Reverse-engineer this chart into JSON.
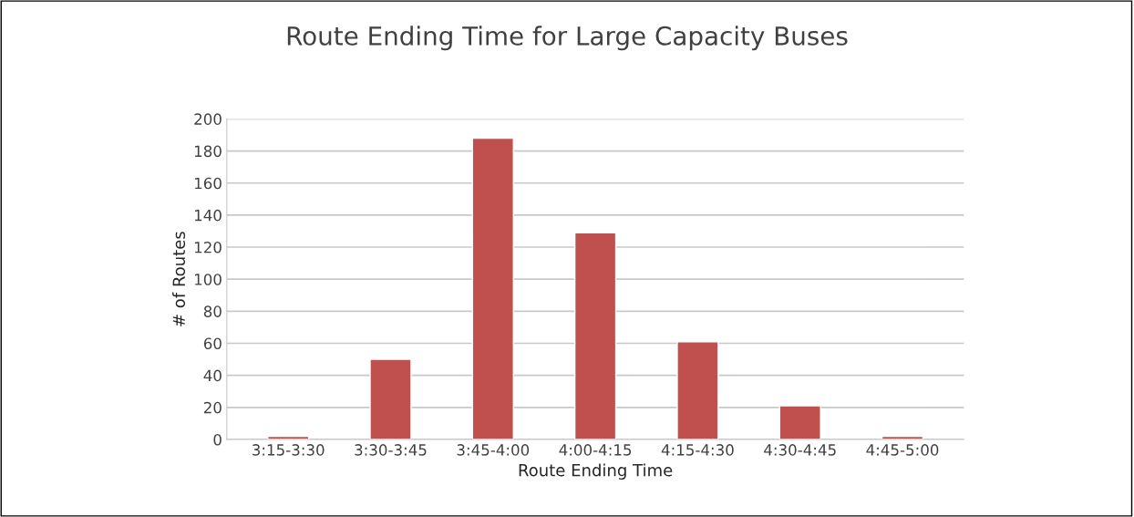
{
  "chart_data": {
    "type": "bar",
    "title": "Route Ending Time for Large Capacity Buses",
    "xlabel": "Route Ending Time",
    "ylabel": "# of Routes",
    "categories": [
      "3:15-3:30",
      "3:30-3:45",
      "3:45-4:00",
      "4:00-4:15",
      "4:15-4:30",
      "4:30-4:45",
      "4:45-5:00"
    ],
    "values": [
      2,
      50,
      188,
      129,
      61,
      21,
      2
    ],
    "color": "#c0504d",
    "ylim": [
      0,
      200
    ],
    "yticks": [
      0,
      20,
      40,
      60,
      80,
      100,
      120,
      140,
      160,
      180,
      200
    ],
    "grid": "y",
    "legend": false
  }
}
